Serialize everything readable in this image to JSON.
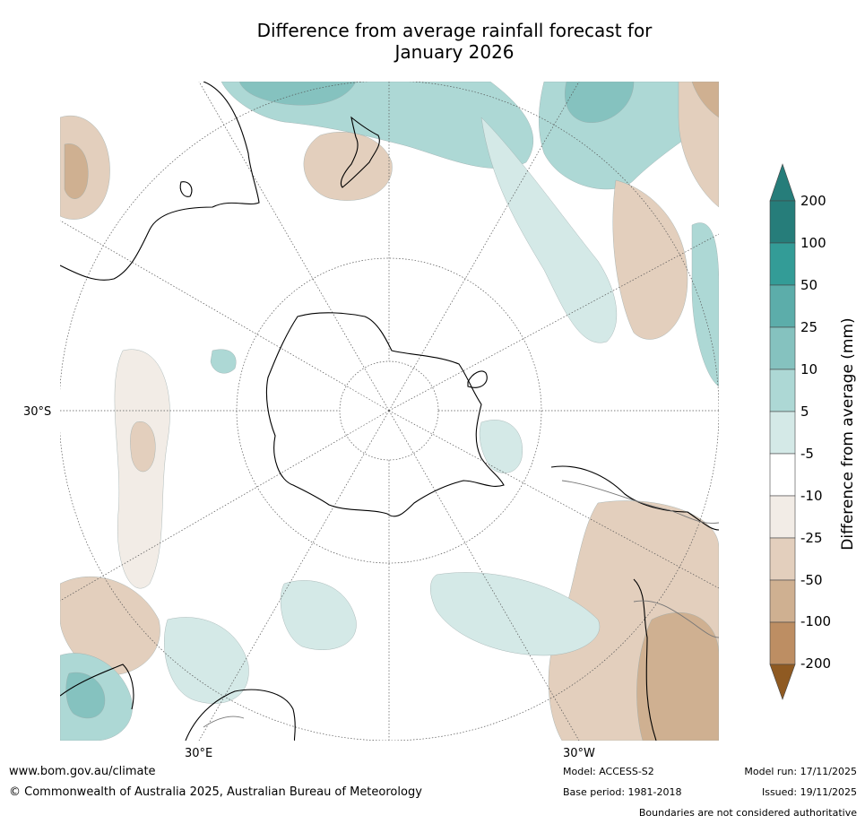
{
  "title_line1": "Difference from average rainfall forecast for",
  "title_line2": "January 2026",
  "latitude_label": "30°S",
  "longitude_labels": {
    "east": "30°E",
    "west": "30°W"
  },
  "colorbar": {
    "title": "Difference from average (mm)",
    "tick_labels": [
      "200",
      "100",
      "50",
      "25",
      "10",
      "5",
      "-5",
      "-10",
      "-25",
      "-50",
      "-100",
      "-200"
    ],
    "colors": {
      "extend_high": "#267d7a",
      "200_plus": "#267d7a",
      "100_200": "#339c97",
      "50_100": "#5cadaa",
      "25_50": "#85c2bf",
      "10_25": "#add8d5",
      "5_10": "#d4e9e7",
      "neutral": "#ffffff",
      "m5_m10": "#f2ece6",
      "m10_m25": "#e3cfbd",
      "m25_m50": "#cfb091",
      "m50_m100": "#bd8e63",
      "m100_m200": "#ab733d",
      "extend_low": "#8f5a22"
    }
  },
  "footer": {
    "url": "www.bom.gov.au/climate",
    "copyright": "© Commonwealth of Australia 2025, Australian Bureau of Meteorology",
    "model": "Model: ACCESS-S2",
    "base_period": "Base period: 1981-2018",
    "model_run": "Model run: 17/11/2025",
    "issued": "Issued: 19/11/2025",
    "disclaimer": "Boundaries are not considered authoritative"
  }
}
